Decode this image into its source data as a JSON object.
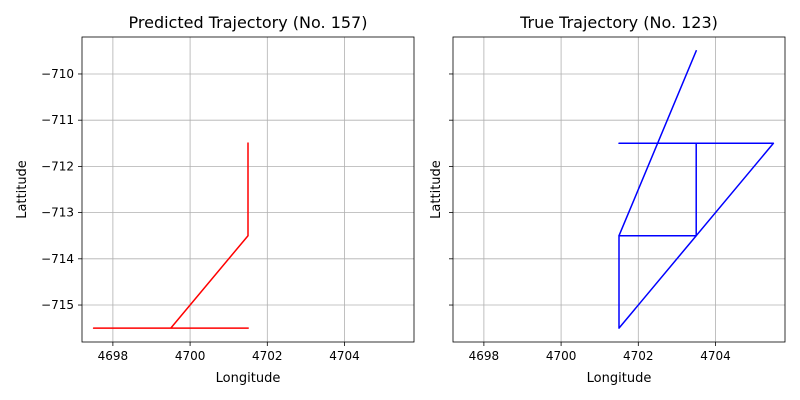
{
  "chart_data": [
    {
      "type": "line",
      "title": "Predicted Trajectory (No. 157)",
      "xlabel": "Longitude",
      "ylabel": "Lattitude",
      "xlim": [
        4697.2,
        4705.8
      ],
      "ylim": [
        -715.8,
        -709.2
      ],
      "xticks": [
        4698,
        4700,
        4702,
        4704
      ],
      "yticks": [
        -710,
        -711,
        -712,
        -713,
        -714,
        -715
      ],
      "grid": true,
      "show_ytick_labels": true,
      "color": "#ff0000",
      "series": [
        {
          "x": [
            4701.5,
            4701.5,
            4699.5,
            4697.5,
            4701.5
          ],
          "y": [
            -711.5,
            -713.5,
            -715.5,
            -715.5,
            -715.5
          ]
        }
      ]
    },
    {
      "type": "line",
      "title": "True Trajectory (No. 123)",
      "xlabel": "Longitude",
      "ylabel": "Lattitude",
      "xlim": [
        4697.2,
        4705.8
      ],
      "ylim": [
        -715.8,
        -709.2
      ],
      "xticks": [
        4698,
        4700,
        4702,
        4704
      ],
      "yticks": [
        -710,
        -711,
        -712,
        -713,
        -714,
        -715
      ],
      "grid": true,
      "show_ytick_labels": false,
      "color": "#0000ff",
      "series": [
        {
          "x": [
            4703.5,
            4701.5,
            4701.5,
            4703.5,
            4703.5,
            4701.5,
            4705.5,
            4701.5,
            4701.5,
            4703.5,
            4701.5
          ],
          "y": [
            -709.5,
            -713.5,
            -715.5,
            -713.5,
            -711.5,
            -711.5,
            -711.5,
            -715.5,
            -713.5,
            -713.5,
            -713.5
          ]
        }
      ]
    }
  ]
}
